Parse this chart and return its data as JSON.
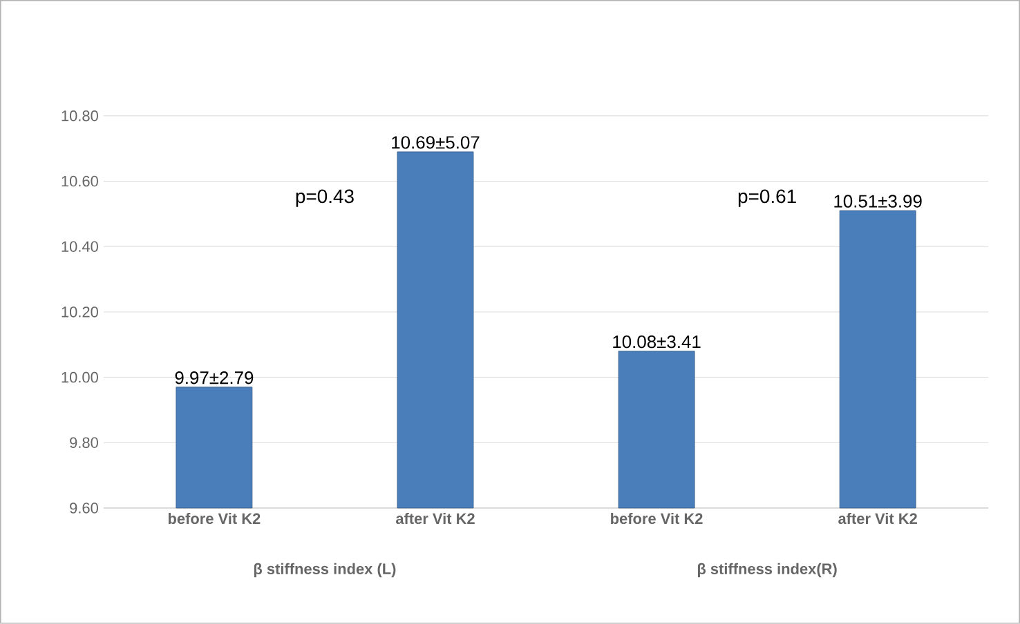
{
  "chart_data": {
    "type": "bar",
    "categories": [
      "before Vit K2",
      "after Vit K2",
      "before Vit K2",
      "after Vit K2"
    ],
    "values": [
      9.97,
      10.69,
      10.08,
      10.51
    ],
    "value_labels": [
      "9.97±2.79",
      "10.69±5.07",
      "10.08±3.41",
      "10.51±3.99"
    ],
    "color": "#4a7ebb",
    "ylim": [
      9.6,
      10.8
    ],
    "yticks": [
      {
        "value": 9.6,
        "label": "9.60"
      },
      {
        "value": 9.8,
        "label": "9.80"
      },
      {
        "value": 10.0,
        "label": "10.00"
      },
      {
        "value": 10.2,
        "label": "10.20"
      },
      {
        "value": 10.4,
        "label": "10.40"
      },
      {
        "value": 10.6,
        "label": "10.60"
      },
      {
        "value": 10.8,
        "label": "10.80"
      }
    ],
    "grid": "y",
    "annotations": [
      "p=0.43",
      "p=0.61",
      "β stiffness index (L)",
      "β stiffness index(R)"
    ]
  }
}
